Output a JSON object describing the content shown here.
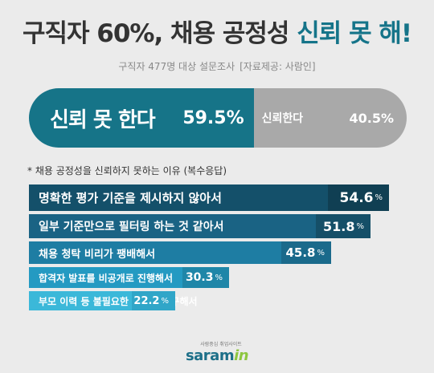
{
  "header": {
    "title_prefix": "구직자 60%, 채용 공정성",
    "title_highlight": "신뢰 못 해!",
    "subtitle_survey": "구직자 477명 대상 설문조사",
    "subtitle_source": "[자료제공: 사람인]"
  },
  "split": {
    "no_trust_label": "신뢰 못 한다",
    "no_trust_value": "59.5%",
    "trust_label": "신뢰한다",
    "trust_value": "40.5%"
  },
  "note": "* 채용 공정성을 신뢰하지 못하는 이유 (복수응답)",
  "logo": {
    "tagline": "사람중심 취업사이트",
    "brand_main": "saram",
    "brand_accent": "in"
  },
  "colors": {
    "teal": "#167488",
    "gray": "#a9a9a9"
  },
  "chart_data": [
    {
      "type": "bar",
      "categories": [
        "신뢰 못 한다",
        "신뢰한다"
      ],
      "values": [
        59.5,
        40.5
      ]
    },
    {
      "type": "bar",
      "categories": [
        "명확한 평가 기준을 제시하지 않아서",
        "일부 기준만으로 필터링 하는 것 같아서",
        "채용 청탁 비리가 팽배해서",
        "합격자 발표를 비공개로 진행해서",
        "부모 이력 등 불필요한 정보를 요구해서"
      ],
      "values": [
        54.6,
        51.8,
        45.8,
        30.3,
        22.2
      ],
      "value_labels": [
        "54.6",
        "51.8",
        "45.8",
        "30.3",
        "22.2"
      ],
      "unit": "%",
      "bar_colors": [
        "#14506a",
        "#1a6384",
        "#1e7da3",
        "#249ac2",
        "#3bb8d9"
      ],
      "value_box_colors": [
        "#103f53",
        "#154f68",
        "#1a6a8b",
        "#1f86a8",
        "#30a6c8"
      ]
    }
  ]
}
